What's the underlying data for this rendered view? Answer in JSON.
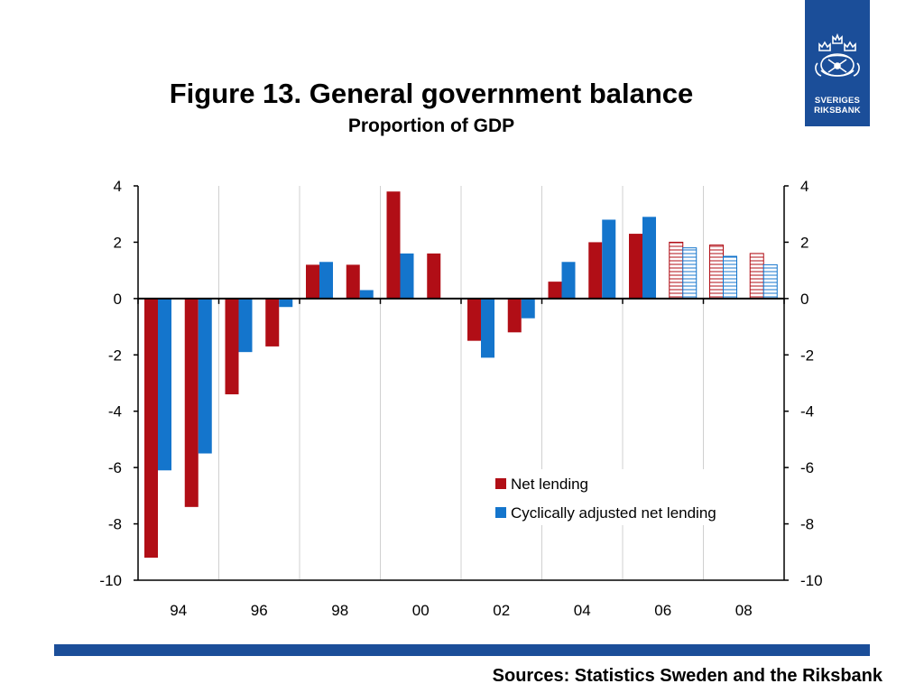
{
  "logo": {
    "line1": "SVERIGES",
    "line2": "RIKSBANK",
    "color": "#1b4e99"
  },
  "footer": {
    "source_text": "Sources: Statistics Sweden and the Riksbank",
    "bar_color": "#1b4e99"
  },
  "chart_data": {
    "type": "bar",
    "title": "Figure 13. General government balance",
    "subtitle": "Proportion of GDP",
    "x_labels": [
      "94",
      "96",
      "98",
      "00",
      "02",
      "04",
      "06",
      "08"
    ],
    "categories": [
      "1994",
      "1995",
      "1996",
      "1997",
      "1998",
      "1999",
      "2000",
      "2001",
      "2002",
      "2003",
      "2004",
      "2005",
      "2006",
      "2007",
      "2008",
      "2009"
    ],
    "forecast_from": "2007",
    "ylim": [
      -10,
      4
    ],
    "yticks": [
      4,
      2,
      0,
      -2,
      -4,
      -6,
      -8,
      -10
    ],
    "y_axis_sides": [
      "left",
      "right"
    ],
    "grid": "vertical",
    "legend_position": "lower-right",
    "series": [
      {
        "name": "Net lending",
        "color": "#b10e16",
        "values": [
          -9.2,
          -7.4,
          -3.4,
          -1.7,
          1.2,
          1.2,
          3.8,
          1.6,
          -1.5,
          -1.2,
          0.6,
          2.0,
          2.3,
          2.0,
          1.9,
          1.6
        ]
      },
      {
        "name": "Cyclically adjusted net lending",
        "color": "#1475cc",
        "values": [
          -6.1,
          -5.5,
          -1.9,
          -0.3,
          1.3,
          0.3,
          1.6,
          null,
          -2.1,
          -0.7,
          1.3,
          2.8,
          2.9,
          1.8,
          1.5,
          1.2
        ]
      }
    ]
  }
}
